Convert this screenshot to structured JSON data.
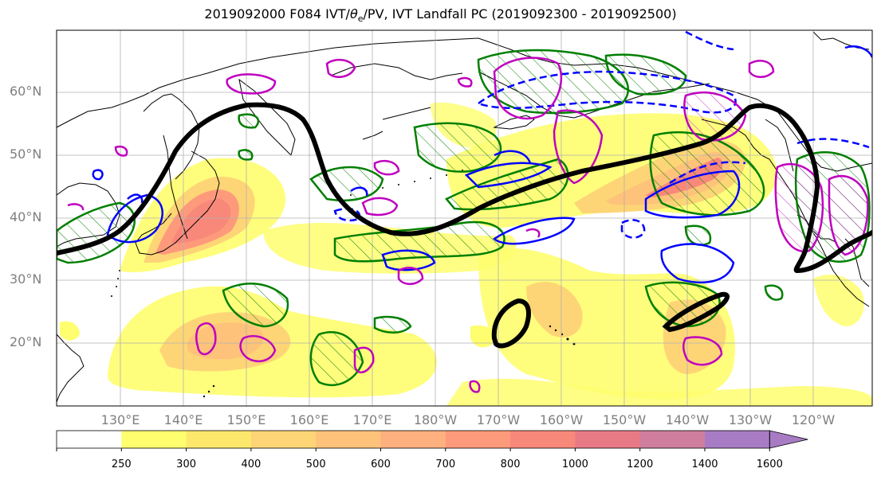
{
  "title": "2019092000 F084 IVT/θe/PV, IVT Landfall PC (2019092300 - 2019092500)",
  "title_parts": {
    "prefix": "2019092000 F084 IVT/",
    "theta": "θ",
    "sub": "e",
    "suffix": "/PV, IVT Landfall PC (2019092300 - 2019092500)"
  },
  "map": {
    "lat_labels": [
      "60°N",
      "50°N",
      "40°N",
      "30°N",
      "20°N"
    ],
    "lon_labels": [
      "130°E",
      "140°E",
      "150°E",
      "160°E",
      "170°E",
      "180°W",
      "170°W",
      "160°W",
      "150°W",
      "140°W",
      "130°W",
      "120°W"
    ]
  },
  "colorbar": {
    "ticks": [
      "250",
      "300",
      "400",
      "500",
      "600",
      "700",
      "800",
      "1000",
      "1200",
      "1400",
      "1600"
    ],
    "colors": [
      "#ffffff",
      "#fefe6e",
      "#fee86c",
      "#fed576",
      "#fec27b",
      "#feb07e",
      "#fe9a7c",
      "#f8887a",
      "#e87a86",
      "#cf7e9e",
      "#a87cc4"
    ]
  },
  "colors": {
    "contour_black": "#000000",
    "contour_green": "#007f00",
    "contour_blue": "#0000ff",
    "contour_magenta": "#bf00bf"
  }
}
